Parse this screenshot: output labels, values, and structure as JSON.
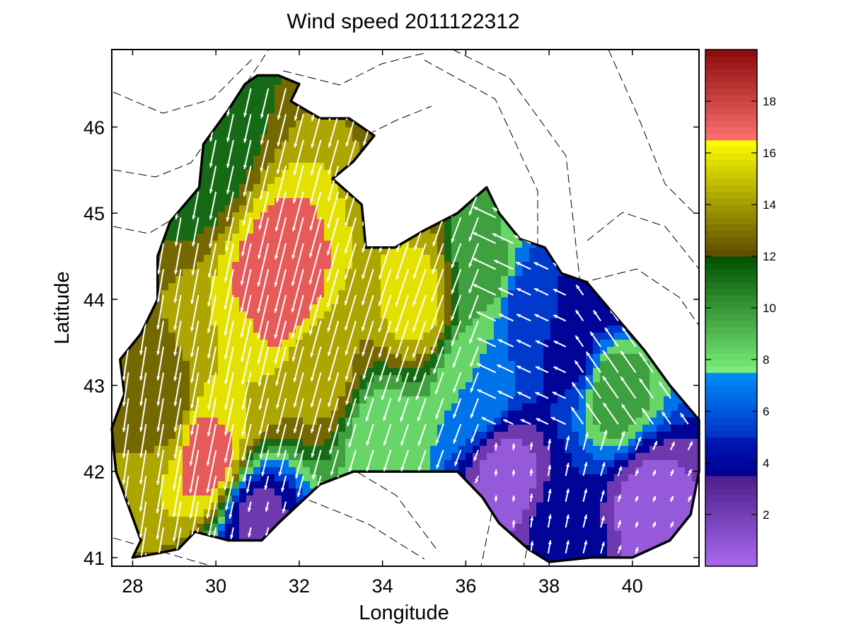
{
  "chart_data": {
    "type": "heatmap",
    "title": "Wind speed 2011122312",
    "xlabel": "Longitude",
    "ylabel": "Latitude",
    "xlim": [
      27.5,
      41.6
    ],
    "ylim": [
      40.9,
      46.9
    ],
    "xticks": [
      "28",
      "30",
      "32",
      "34",
      "36",
      "38",
      "40"
    ],
    "yticks": [
      "41",
      "42",
      "43",
      "44",
      "45",
      "46"
    ],
    "colorbar": {
      "range": [
        0,
        20
      ],
      "ticks": [
        "2",
        "4",
        "6",
        "8",
        "10",
        "12",
        "14",
        "16",
        "18"
      ],
      "bands": [
        {
          "from": 0,
          "to": 3.5,
          "start": "#a969f0",
          "end": "#4d1e8a"
        },
        {
          "from": 3.5,
          "to": 5,
          "start": "#000090",
          "end": "#0018b8"
        },
        {
          "from": 5,
          "to": 7.5,
          "start": "#0030c8",
          "end": "#0090f8"
        },
        {
          "from": 7.5,
          "to": 12,
          "start": "#7cf07c",
          "end": "#005000"
        },
        {
          "from": 12,
          "to": 16.5,
          "start": "#5a4a00",
          "end": "#ffff00"
        },
        {
          "from": 16.5,
          "to": 20,
          "start": "#ff7070",
          "end": "#8a0a0a"
        }
      ]
    },
    "speed_field": [
      {
        "lon": 29.8,
        "lat": 42.2,
        "speed": 17.5
      },
      {
        "lon": 31.6,
        "lat": 44.1,
        "speed": 18.0
      },
      {
        "lon": 34.8,
        "lat": 44.0,
        "speed": 15.5
      },
      {
        "lon": 30.5,
        "lat": 43.0,
        "speed": 15.0
      },
      {
        "lon": 32.5,
        "lat": 43.2,
        "speed": 14.0
      },
      {
        "lon": 28.8,
        "lat": 42.8,
        "speed": 13.0
      },
      {
        "lon": 29.5,
        "lat": 45.8,
        "speed": 10.5
      },
      {
        "lon": 36.5,
        "lat": 44.3,
        "speed": 9.5
      },
      {
        "lon": 34.0,
        "lat": 42.3,
        "speed": 8.0
      },
      {
        "lon": 36.2,
        "lat": 43.0,
        "speed": 7.5
      },
      {
        "lon": 37.5,
        "lat": 43.9,
        "speed": 5.0
      },
      {
        "lon": 39.6,
        "lat": 42.95,
        "speed": 10.0
      },
      {
        "lon": 38.5,
        "lat": 43.4,
        "speed": 4.0
      },
      {
        "lon": 39.2,
        "lat": 44.1,
        "speed": 3.5
      },
      {
        "lon": 37.0,
        "lat": 41.9,
        "speed": 0.8
      },
      {
        "lon": 38.3,
        "lat": 41.3,
        "speed": 4.0
      },
      {
        "lon": 40.4,
        "lat": 41.6,
        "speed": 0.8
      },
      {
        "lon": 31.0,
        "lat": 41.4,
        "speed": 2.5
      }
    ],
    "coastline": [
      [
        28.0,
        41.0
      ],
      [
        28.2,
        41.2
      ],
      [
        27.9,
        41.6
      ],
      [
        27.6,
        42.0
      ],
      [
        27.5,
        42.5
      ],
      [
        27.8,
        42.9
      ],
      [
        27.7,
        43.3
      ],
      [
        28.2,
        43.6
      ],
      [
        28.6,
        44.0
      ],
      [
        28.6,
        44.5
      ],
      [
        28.9,
        44.9
      ],
      [
        29.6,
        45.3
      ],
      [
        29.7,
        45.8
      ],
      [
        30.3,
        46.2
      ],
      [
        30.7,
        46.5
      ],
      [
        31.0,
        46.6
      ],
      [
        31.5,
        46.6
      ],
      [
        32.0,
        46.5
      ],
      [
        31.8,
        46.3
      ],
      [
        32.5,
        46.1
      ],
      [
        33.2,
        46.1
      ],
      [
        33.8,
        45.9
      ],
      [
        33.3,
        45.6
      ],
      [
        32.8,
        45.4
      ],
      [
        33.5,
        45.1
      ],
      [
        33.6,
        44.6
      ],
      [
        34.3,
        44.6
      ],
      [
        35.0,
        44.8
      ],
      [
        35.8,
        45.0
      ],
      [
        36.5,
        45.3
      ],
      [
        36.8,
        45.0
      ],
      [
        37.3,
        44.7
      ],
      [
        37.9,
        44.6
      ],
      [
        38.3,
        44.3
      ],
      [
        38.9,
        44.2
      ],
      [
        39.6,
        43.8
      ],
      [
        40.3,
        43.4
      ],
      [
        40.9,
        43.0
      ],
      [
        41.6,
        42.6
      ],
      [
        41.6,
        42.0
      ],
      [
        41.4,
        41.5
      ],
      [
        40.9,
        41.2
      ],
      [
        40.0,
        41.0
      ],
      [
        39.0,
        41.0
      ],
      [
        38.0,
        40.95
      ],
      [
        37.5,
        41.1
      ],
      [
        36.8,
        41.4
      ],
      [
        36.4,
        41.7
      ],
      [
        35.8,
        42.0
      ],
      [
        35.0,
        42.0
      ],
      [
        34.2,
        42.0
      ],
      [
        33.3,
        42.0
      ],
      [
        32.5,
        41.85
      ],
      [
        31.5,
        41.4
      ],
      [
        31.1,
        41.2
      ],
      [
        30.3,
        41.2
      ],
      [
        29.5,
        41.3
      ],
      [
        29.1,
        41.1
      ],
      [
        28.6,
        41.05
      ]
    ],
    "wind_vectors_note": "white arrows, predominantly south-southwest in west/central basin, north/northwest in southeast"
  }
}
